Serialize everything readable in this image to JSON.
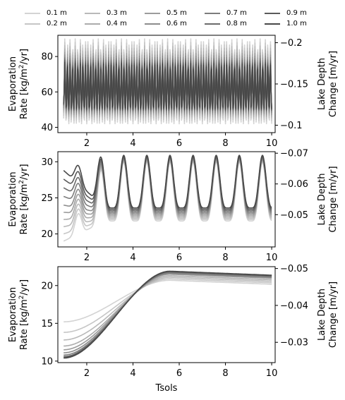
{
  "chart_data": [
    {
      "type": "line",
      "panel": "top",
      "ylabel_line1": "Evaporation",
      "ylabel_line2": "Rate [kg/m",
      "ylabel_sup": "2",
      "ylabel_tail": "/yr]",
      "y2label_line1": "Lake Depth",
      "y2label_line2": "Change [m/yr]",
      "xlim": [
        0.75,
        10.15
      ],
      "ylim": [
        37,
        92
      ],
      "yticks": [
        40,
        60,
        80
      ],
      "y2lim": [
        -0.091,
        -0.209
      ],
      "y2ticks": [
        -0.2,
        -0.15,
        -0.1
      ],
      "xticks": [
        2,
        4,
        6,
        8,
        10
      ],
      "cycles": 9,
      "t_start": 1.0,
      "t_end": 10.0,
      "series": [
        {
          "name": "0.1 m",
          "min": 42,
          "max": 90,
          "color": "#d3d3d3"
        },
        {
          "name": "0.2 m",
          "min": 43.5,
          "max": 88,
          "color": "#c6c6c6"
        },
        {
          "name": "0.3 m",
          "min": 45,
          "max": 86,
          "color": "#b9b9b9"
        },
        {
          "name": "0.4 m",
          "min": 46,
          "max": 84,
          "color": "#acacac"
        },
        {
          "name": "0.5 m",
          "min": 47,
          "max": 82,
          "color": "#9c9c9c"
        },
        {
          "name": "0.6 m",
          "min": 48,
          "max": 80.5,
          "color": "#8c8c8c"
        },
        {
          "name": "0.7 m",
          "min": 49,
          "max": 79,
          "color": "#7c7c7c"
        },
        {
          "name": "0.8 m",
          "min": 49.5,
          "max": 78,
          "color": "#6b6b6b"
        },
        {
          "name": "0.9 m",
          "min": 50,
          "max": 77,
          "color": "#5a5a5a"
        },
        {
          "name": "1.0 m",
          "min": 50.5,
          "max": 76,
          "color": "#484848"
        }
      ]
    },
    {
      "type": "line",
      "panel": "middle",
      "ylabel_line1": "Evaporation",
      "ylabel_line2": "Rate [kg/m",
      "ylabel_sup": "2",
      "ylabel_tail": "/yr]",
      "y2label_line1": "Lake Depth",
      "y2label_line2": "Change [m/yr]",
      "xlim": [
        0.75,
        10.15
      ],
      "ylim": [
        18.2,
        31.4
      ],
      "yticks": [
        20,
        25,
        30
      ],
      "y2lim": [
        -0.0395,
        -0.0705
      ],
      "y2ticks": [
        -0.07,
        -0.06,
        -0.05
      ],
      "xticks": [
        2,
        4,
        6,
        8,
        10
      ],
      "t_start": 1.0,
      "t_end": 10.0,
      "series": [
        {
          "name": "0.1 m",
          "start": 19.0,
          "peak": 30.0,
          "trough": 21.8,
          "color": "#d3d3d3"
        },
        {
          "name": "0.2 m",
          "start": 20.0,
          "peak": 30.0,
          "trough": 22.0,
          "color": "#c6c6c6"
        },
        {
          "name": "0.3 m",
          "start": 21.0,
          "peak": 30.1,
          "trough": 22.2,
          "color": "#b9b9b9"
        },
        {
          "name": "0.4 m",
          "start": 22.0,
          "peak": 30.2,
          "trough": 22.4,
          "color": "#acacac"
        },
        {
          "name": "0.5 m",
          "start": 23.0,
          "peak": 30.3,
          "trough": 22.6,
          "color": "#9c9c9c"
        },
        {
          "name": "0.6 m",
          "start": 24.0,
          "peak": 30.4,
          "trough": 22.8,
          "color": "#8c8c8c"
        },
        {
          "name": "0.7 m",
          "start": 25.2,
          "peak": 30.5,
          "trough": 23.0,
          "color": "#7c7c7c"
        },
        {
          "name": "0.8 m",
          "start": 26.4,
          "peak": 30.6,
          "trough": 23.2,
          "color": "#6b6b6b"
        },
        {
          "name": "0.9 m",
          "start": 27.6,
          "peak": 30.7,
          "trough": 23.4,
          "color": "#5a5a5a"
        },
        {
          "name": "1.0 m",
          "start": 28.8,
          "peak": 30.9,
          "trough": 23.6,
          "color": "#484848"
        }
      ]
    },
    {
      "type": "line",
      "panel": "bottom",
      "ylabel_line1": "Evaporation",
      "ylabel_line2": "Rate [kg/m",
      "ylabel_sup": "2",
      "ylabel_tail": "/yr]",
      "y2label_line1": "Lake Depth",
      "y2label_line2": "Change [m/yr]",
      "xlabel": "Tsols",
      "xlim": [
        0.75,
        10.15
      ],
      "ylim": [
        9.8,
        22.5
      ],
      "yticks": [
        10,
        15,
        20
      ],
      "y2lim": [
        -0.0245,
        -0.0505
      ],
      "y2ticks": [
        -0.05,
        -0.04,
        -0.03
      ],
      "xticks": [
        2,
        4,
        6,
        8,
        10
      ],
      "t_start": 1.0,
      "t_end": 10.0,
      "series": [
        {
          "name": "0.1 m",
          "start": 15.2,
          "end": 20.2,
          "color": "#d3d3d3"
        },
        {
          "name": "0.2 m",
          "start": 13.8,
          "end": 20.4,
          "color": "#c6c6c6"
        },
        {
          "name": "0.3 m",
          "start": 12.8,
          "end": 20.6,
          "color": "#b9b9b9"
        },
        {
          "name": "0.4 m",
          "start": 12.0,
          "end": 20.8,
          "color": "#acacac"
        },
        {
          "name": "0.5 m",
          "start": 11.5,
          "end": 21.0,
          "color": "#9c9c9c"
        },
        {
          "name": "0.6 m",
          "start": 11.1,
          "end": 21.1,
          "color": "#8c8c8c"
        },
        {
          "name": "0.7 m",
          "start": 10.8,
          "end": 21.2,
          "color": "#7c7c7c"
        },
        {
          "name": "0.8 m",
          "start": 10.6,
          "end": 21.3,
          "color": "#6b6b6b"
        },
        {
          "name": "0.9 m",
          "start": 10.5,
          "end": 21.35,
          "color": "#5a5a5a"
        },
        {
          "name": "1.0 m",
          "start": 10.4,
          "end": 21.4,
          "color": "#484848"
        }
      ]
    }
  ],
  "legend": [
    {
      "label": "0.1 m",
      "color": "#d3d3d3"
    },
    {
      "label": "0.3 m",
      "color": "#b9b9b9"
    },
    {
      "label": "0.5 m",
      "color": "#9c9c9c"
    },
    {
      "label": "0.7 m",
      "color": "#7c7c7c"
    },
    {
      "label": "0.9 m",
      "color": "#5a5a5a"
    },
    {
      "label": "0.2 m",
      "color": "#c6c6c6"
    },
    {
      "label": "0.4 m",
      "color": "#acacac"
    },
    {
      "label": "0.6 m",
      "color": "#8c8c8c"
    },
    {
      "label": "0.8 m",
      "color": "#6b6b6b"
    },
    {
      "label": "1.0 m",
      "color": "#484848"
    }
  ]
}
